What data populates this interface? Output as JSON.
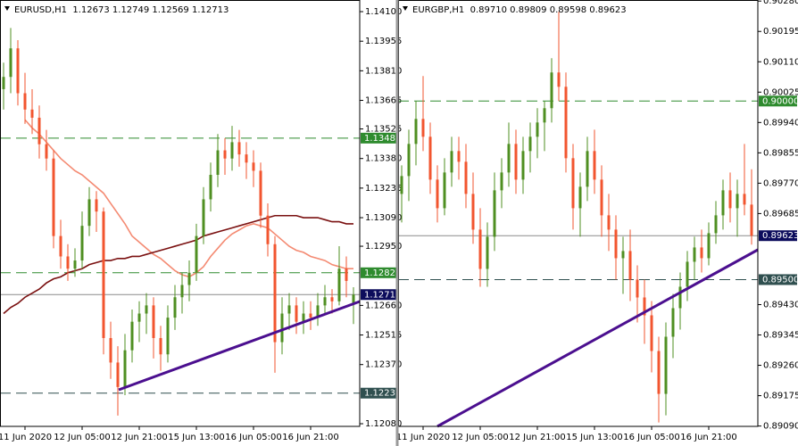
{
  "chart_data": [
    {
      "type": "candlestick",
      "header": "EURUSD,H1  1.12673 1.12749 1.12569 1.12713",
      "categories": [
        null,
        null,
        null,
        "11 Jun 2020",
        null,
        null,
        null,
        null,
        null,
        null,
        null,
        "12 Jun 05:00",
        null,
        null,
        null,
        null,
        null,
        null,
        null,
        "12 Jun 21:00",
        null,
        null,
        null,
        null,
        null,
        null,
        null,
        "15 Jun 13:00",
        null,
        null,
        null,
        null,
        null,
        null,
        null,
        "16 Jun 05:00",
        null,
        null,
        null,
        null,
        null,
        null,
        null,
        "16 Jun 21:00",
        null,
        null,
        null,
        null,
        null,
        null
      ],
      "open": [
        1.1372,
        1.1378,
        1.1392,
        1.137,
        1.1362,
        1.1358,
        1.1345,
        1.1338,
        1.13,
        1.129,
        1.1284,
        1.1288,
        1.1305,
        1.1318,
        1.1312,
        1.125,
        1.1238,
        1.1226,
        1.1244,
        1.1258,
        1.1262,
        1.1266,
        1.125,
        1.1242,
        1.126,
        1.127,
        1.1276,
        1.1282,
        1.13,
        1.1318,
        1.133,
        1.1342,
        1.1338,
        1.1346,
        1.134,
        1.1336,
        1.1332,
        1.131,
        1.1296,
        1.1248,
        1.1262,
        1.1266,
        1.1258,
        1.1262,
        1.126,
        1.1266,
        1.127,
        1.1268,
        1.1284,
        1.12673
      ],
      "high": [
        1.1385,
        1.1402,
        1.1396,
        1.138,
        1.1372,
        1.1364,
        1.1352,
        1.1342,
        1.1308,
        1.1296,
        1.1294,
        1.1312,
        1.1324,
        1.1322,
        1.1314,
        1.1258,
        1.1246,
        1.1252,
        1.1264,
        1.1268,
        1.1272,
        1.127,
        1.1256,
        1.1266,
        1.1276,
        1.1282,
        1.1288,
        1.1306,
        1.1324,
        1.1336,
        1.135,
        1.1348,
        1.1354,
        1.1352,
        1.1346,
        1.1342,
        1.1336,
        1.1316,
        1.13,
        1.127,
        1.1272,
        1.127,
        1.1268,
        1.1268,
        1.1272,
        1.1276,
        1.1274,
        1.1295,
        1.129,
        1.12749
      ],
      "low": [
        1.1362,
        1.137,
        1.1364,
        1.1355,
        1.135,
        1.1338,
        1.1332,
        1.1294,
        1.1284,
        1.1278,
        1.128,
        1.1284,
        1.13,
        1.1302,
        1.1242,
        1.123,
        1.1212,
        1.1222,
        1.1238,
        1.1248,
        1.1252,
        1.124,
        1.1234,
        1.1238,
        1.1254,
        1.1262,
        1.1268,
        1.1278,
        1.1296,
        1.1312,
        1.1324,
        1.133,
        1.1332,
        1.1334,
        1.1328,
        1.1324,
        1.1304,
        1.129,
        1.1233,
        1.1242,
        1.1254,
        1.1252,
        1.1252,
        1.1254,
        1.1256,
        1.1262,
        1.1262,
        1.1266,
        1.127,
        1.12569
      ],
      "close": [
        1.1378,
        1.1392,
        1.137,
        1.1362,
        1.1358,
        1.1345,
        1.1338,
        1.13,
        1.129,
        1.1284,
        1.1288,
        1.1305,
        1.1318,
        1.1312,
        1.125,
        1.1238,
        1.1226,
        1.1244,
        1.1258,
        1.1262,
        1.1266,
        1.125,
        1.1242,
        1.126,
        1.127,
        1.1276,
        1.1282,
        1.13,
        1.1318,
        1.133,
        1.1342,
        1.1338,
        1.1346,
        1.134,
        1.1336,
        1.1332,
        1.131,
        1.1296,
        1.1248,
        1.1262,
        1.1266,
        1.1258,
        1.1262,
        1.126,
        1.1266,
        1.127,
        1.1268,
        1.1284,
        1.1278,
        1.12713
      ],
      "up_color": "#4f8f22",
      "down_color": "#f2552f",
      "ylim": [
        1.12067,
        1.14157
      ],
      "yticks": [
        {
          "value": 1.141,
          "label": "1.14100"
        },
        1.13955,
        {
          "value": 1.1381,
          "label": "1.13810"
        },
        1.13665,
        1.13525,
        {
          "value": 1.1338,
          "label": "1.13380"
        },
        1.13235,
        {
          "value": 1.1309,
          "label": "1.13090"
        },
        {
          "value": 1.1295,
          "label": "1.12950"
        },
        {
          "value": 1.1266,
          "label": "1.12660"
        },
        1.12515,
        {
          "value": 1.1237,
          "label": "1.12370"
        },
        {
          "value": 1.1208,
          "label": "1.12080"
        }
      ],
      "levels": [
        {
          "value": 1.1348,
          "label": "1.13480",
          "color": "#2e8b2e"
        },
        {
          "value": 1.1282,
          "label": "1.12820",
          "color": "#2e8b2e"
        },
        {
          "value": 1.1223,
          "label": "1.12230",
          "color": "#2f4f4f"
        }
      ],
      "last_color": "#0c0c5c",
      "series": [
        {
          "color": "#f48a72",
          "values": [
            null,
            null,
            null,
            1.1357,
            1.1353,
            1.135,
            1.1346,
            1.1342,
            1.1338,
            1.1335,
            1.1332,
            1.133,
            1.1327,
            1.1324,
            1.1321,
            1.1316,
            1.1311,
            1.1306,
            1.13,
            1.1297,
            1.1294,
            1.1291,
            1.1289,
            1.1286,
            1.1283,
            1.1281,
            1.128,
            1.1282,
            1.1285,
            1.129,
            1.1294,
            1.1298,
            1.1301,
            1.1303,
            1.1305,
            1.1306,
            1.1305,
            1.1304,
            1.1301,
            1.1298,
            1.1295,
            1.1293,
            1.1292,
            1.129,
            1.1289,
            1.1288,
            1.1286,
            1.1285,
            1.1284,
            1.1284
          ]
        },
        {
          "color": "#7a1010",
          "values": [
            1.1262,
            1.1265,
            1.1267,
            1.127,
            1.1272,
            1.1274,
            1.1277,
            1.1279,
            1.128,
            1.1282,
            1.1283,
            1.1284,
            1.1286,
            1.1287,
            1.1288,
            1.1288,
            1.1289,
            1.1289,
            1.129,
            1.129,
            1.1291,
            1.1292,
            1.1293,
            1.1294,
            1.1295,
            1.1296,
            1.1297,
            1.1298,
            1.13,
            1.1301,
            1.1302,
            1.1303,
            1.1304,
            1.1305,
            1.1306,
            1.1307,
            1.1308,
            1.1309,
            1.131,
            1.131,
            1.131,
            1.131,
            1.1309,
            1.1309,
            1.1309,
            1.1308,
            1.1307,
            1.1307,
            1.1306,
            1.1306
          ]
        }
      ]
    },
    {
      "type": "candlestick",
      "header": "EURGBP,H1  0.89710 0.89809 0.89598 0.89623",
      "categories": [
        null,
        null,
        null,
        "11 Jun 2020",
        null,
        null,
        null,
        null,
        null,
        null,
        null,
        "12 Jun 05:00",
        null,
        null,
        null,
        null,
        null,
        null,
        null,
        "12 Jun 21:00",
        null,
        null,
        null,
        null,
        null,
        null,
        null,
        "15 Jun 13:00",
        null,
        null,
        null,
        null,
        null,
        null,
        null,
        "16 Jun 05:00",
        null,
        null,
        null,
        null,
        null,
        null,
        null,
        "16 Jun 21:00",
        null,
        null,
        null,
        null,
        null,
        null
      ],
      "open": [
        0.8974,
        0.8979,
        0.8988,
        0.8995,
        0.899,
        0.8978,
        0.897,
        0.898,
        0.8986,
        0.8983,
        0.8974,
        0.8964,
        0.8953,
        0.8962,
        0.8975,
        0.898,
        0.8988,
        0.8978,
        0.8986,
        0.899,
        0.8994,
        0.8998,
        0.9008,
        0.9004,
        0.8984,
        0.897,
        0.8976,
        0.8986,
        0.8978,
        0.8968,
        0.8964,
        0.8956,
        0.8958,
        0.895,
        0.8945,
        0.894,
        0.893,
        0.8918,
        0.8934,
        0.8942,
        0.8948,
        0.8955,
        0.8959,
        0.8956,
        0.8963,
        0.8968,
        0.8975,
        0.897,
        0.8974,
        0.8971
      ],
      "high": [
        0.8982,
        0.8992,
        0.9,
        0.9007,
        0.8994,
        0.8982,
        0.8984,
        0.899,
        0.899,
        0.8988,
        0.898,
        0.897,
        0.8966,
        0.898,
        0.8984,
        0.8994,
        0.8992,
        0.899,
        0.8994,
        0.8998,
        0.9,
        0.9012,
        0.9025,
        0.9008,
        0.8988,
        0.898,
        0.899,
        0.8992,
        0.8982,
        0.8974,
        0.8968,
        0.8962,
        0.8964,
        0.8954,
        0.895,
        0.8944,
        0.8934,
        0.8938,
        0.8946,
        0.8952,
        0.8958,
        0.8962,
        0.8964,
        0.8966,
        0.8972,
        0.8978,
        0.898,
        0.8978,
        0.8988,
        0.89809
      ],
      "low": [
        0.8966,
        0.8972,
        0.8982,
        0.8986,
        0.8974,
        0.8966,
        0.8968,
        0.8976,
        0.8978,
        0.897,
        0.896,
        0.8948,
        0.8948,
        0.8958,
        0.897,
        0.8976,
        0.8974,
        0.8974,
        0.898,
        0.8984,
        0.8986,
        0.8994,
        0.9,
        0.898,
        0.8964,
        0.8962,
        0.8972,
        0.8974,
        0.8962,
        0.8958,
        0.895,
        0.8946,
        0.8944,
        0.8938,
        0.8932,
        0.8924,
        0.891,
        0.8912,
        0.8928,
        0.8936,
        0.8944,
        0.895,
        0.8952,
        0.8954,
        0.896,
        0.8964,
        0.8966,
        0.8962,
        0.8968,
        0.89598
      ],
      "close": [
        0.8979,
        0.8988,
        0.8995,
        0.899,
        0.8978,
        0.897,
        0.898,
        0.8986,
        0.8983,
        0.8974,
        0.8964,
        0.8953,
        0.8962,
        0.8975,
        0.898,
        0.8988,
        0.8978,
        0.8986,
        0.899,
        0.8994,
        0.8998,
        0.9008,
        0.9004,
        0.8984,
        0.897,
        0.8976,
        0.8986,
        0.8978,
        0.8968,
        0.8964,
        0.8956,
        0.8958,
        0.895,
        0.8945,
        0.894,
        0.893,
        0.8918,
        0.8934,
        0.8942,
        0.8948,
        0.8955,
        0.8959,
        0.8956,
        0.8963,
        0.8968,
        0.8975,
        0.897,
        0.8974,
        0.8971,
        0.89623
      ],
      "up_color": "#4f8f22",
      "down_color": "#f2552f",
      "ylim": [
        0.89089,
        0.90283
      ],
      "yticks": [
        {
          "value": 0.9028,
          "label": "0.90280"
        },
        0.90195,
        {
          "value": 0.9011,
          "label": "0.90110"
        },
        0.90025,
        {
          "value": 0.8994,
          "label": "0.89940"
        },
        0.89855,
        {
          "value": 0.8977,
          "label": "0.89770"
        },
        0.89685,
        {
          "value": 0.8943,
          "label": "0.89430"
        },
        0.89345,
        {
          "value": 0.8926,
          "label": "0.89260"
        },
        0.89175,
        {
          "value": 0.8909,
          "label": "0.89090"
        }
      ],
      "levels": [
        {
          "value": 0.9,
          "label": "0.90000",
          "color": "#2e8b2e"
        },
        {
          "value": 0.895,
          "label": "0.89500",
          "color": "#2f4f4f"
        }
      ],
      "last_color": "#0c0c5c",
      "series": []
    }
  ]
}
